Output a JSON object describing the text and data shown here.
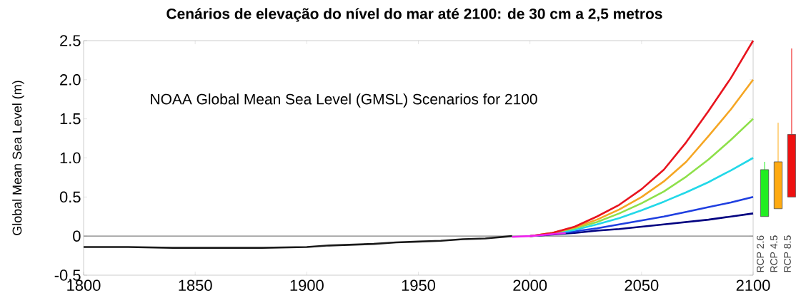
{
  "chart_data": [
    {
      "type": "line",
      "title": "Cenários de elevação do nível do mar até 2100: de 30 cm a 2,5 metros",
      "ylabel": "Global Mean Sea Level (m)",
      "annotations": [
        "NOAA Global Mean Sea Level (GMSL) Scenarios for 2100"
      ],
      "xlim": [
        1800,
        2100
      ],
      "xticks": [
        1800,
        1850,
        1900,
        1950,
        2000,
        2050,
        2100
      ],
      "ylim": [
        -0.5,
        2.5
      ],
      "yticks": [
        -0.5,
        0,
        0.5,
        {
          "value": 1,
          "label": "1.0"
        },
        1.5,
        {
          "value": 2,
          "label": "2.0"
        },
        2.5
      ],
      "ref_lines": [
        {
          "axis": "y",
          "value": 0,
          "color": "#808080"
        }
      ],
      "series": [
        {
          "color": "#1a1a1a",
          "x": [
            1800,
            1820,
            1840,
            1860,
            1880,
            1900,
            1910,
            1920,
            1930,
            1940,
            1950,
            1960,
            1970,
            1980,
            1992
          ],
          "values": [
            -0.14,
            -0.14,
            -0.15,
            -0.15,
            -0.15,
            -0.14,
            -0.12,
            -0.11,
            -0.1,
            -0.08,
            -0.07,
            -0.06,
            -0.04,
            -0.03,
            0.0
          ]
        },
        {
          "color": "#000080",
          "x": [
            2000,
            2010,
            2020,
            2030,
            2040,
            2050,
            2060,
            2070,
            2080,
            2090,
            2100
          ],
          "values": [
            0,
            0.02,
            0.04,
            0.07,
            0.09,
            0.12,
            0.15,
            0.18,
            0.21,
            0.25,
            0.29
          ]
        },
        {
          "color": "#1f3fe0",
          "x": [
            2000,
            2010,
            2020,
            2030,
            2040,
            2050,
            2060,
            2070,
            2080,
            2090,
            2100
          ],
          "values": [
            0,
            0.03,
            0.06,
            0.1,
            0.15,
            0.2,
            0.25,
            0.31,
            0.37,
            0.43,
            0.5
          ]
        },
        {
          "color": "#22d8e8",
          "x": [
            2000,
            2010,
            2020,
            2030,
            2040,
            2050,
            2060,
            2070,
            2080,
            2090,
            2100
          ],
          "values": [
            0,
            0.03,
            0.08,
            0.15,
            0.23,
            0.33,
            0.44,
            0.56,
            0.69,
            0.84,
            1.0
          ]
        },
        {
          "color": "#8ee04a",
          "x": [
            2000,
            2010,
            2020,
            2030,
            2040,
            2050,
            2060,
            2070,
            2080,
            2090,
            2100
          ],
          "values": [
            0,
            0.04,
            0.1,
            0.18,
            0.29,
            0.42,
            0.57,
            0.76,
            0.98,
            1.23,
            1.5
          ]
        },
        {
          "color": "#f5a623",
          "x": [
            2000,
            2010,
            2020,
            2030,
            2040,
            2050,
            2060,
            2070,
            2080,
            2090,
            2100
          ],
          "values": [
            0,
            0.04,
            0.11,
            0.21,
            0.34,
            0.5,
            0.7,
            0.95,
            1.28,
            1.62,
            2.0
          ]
        },
        {
          "color": "#e8141e",
          "x": [
            2000,
            2010,
            2020,
            2030,
            2040,
            2050,
            2060,
            2070,
            2080,
            2090,
            2100
          ],
          "values": [
            0,
            0.04,
            0.12,
            0.25,
            0.4,
            0.6,
            0.85,
            1.2,
            1.6,
            2.02,
            2.5
          ]
        },
        {
          "color": "#ee22ee",
          "x": [
            1992,
            2000,
            2008,
            2016
          ],
          "values": [
            -0.01,
            0,
            0.02,
            0.04
          ]
        }
      ]
    },
    {
      "type": "bar",
      "categories": [
        "RCP 2.6",
        "RCP 4.5",
        "RCP 8.5"
      ],
      "base": [
        0.25,
        0.35,
        0.5
      ],
      "values": [
        0.6,
        0.6,
        0.8
      ],
      "colors": [
        "#22ee22",
        "#ffaa11",
        "#ee1111"
      ],
      "errors": [
        [
          0.85,
          0.95
        ],
        [
          0.95,
          1.45
        ],
        [
          1.3,
          2.4
        ]
      ],
      "ylim": [
        -0.5,
        2.5
      ],
      "tick_labels": "x"
    }
  ]
}
